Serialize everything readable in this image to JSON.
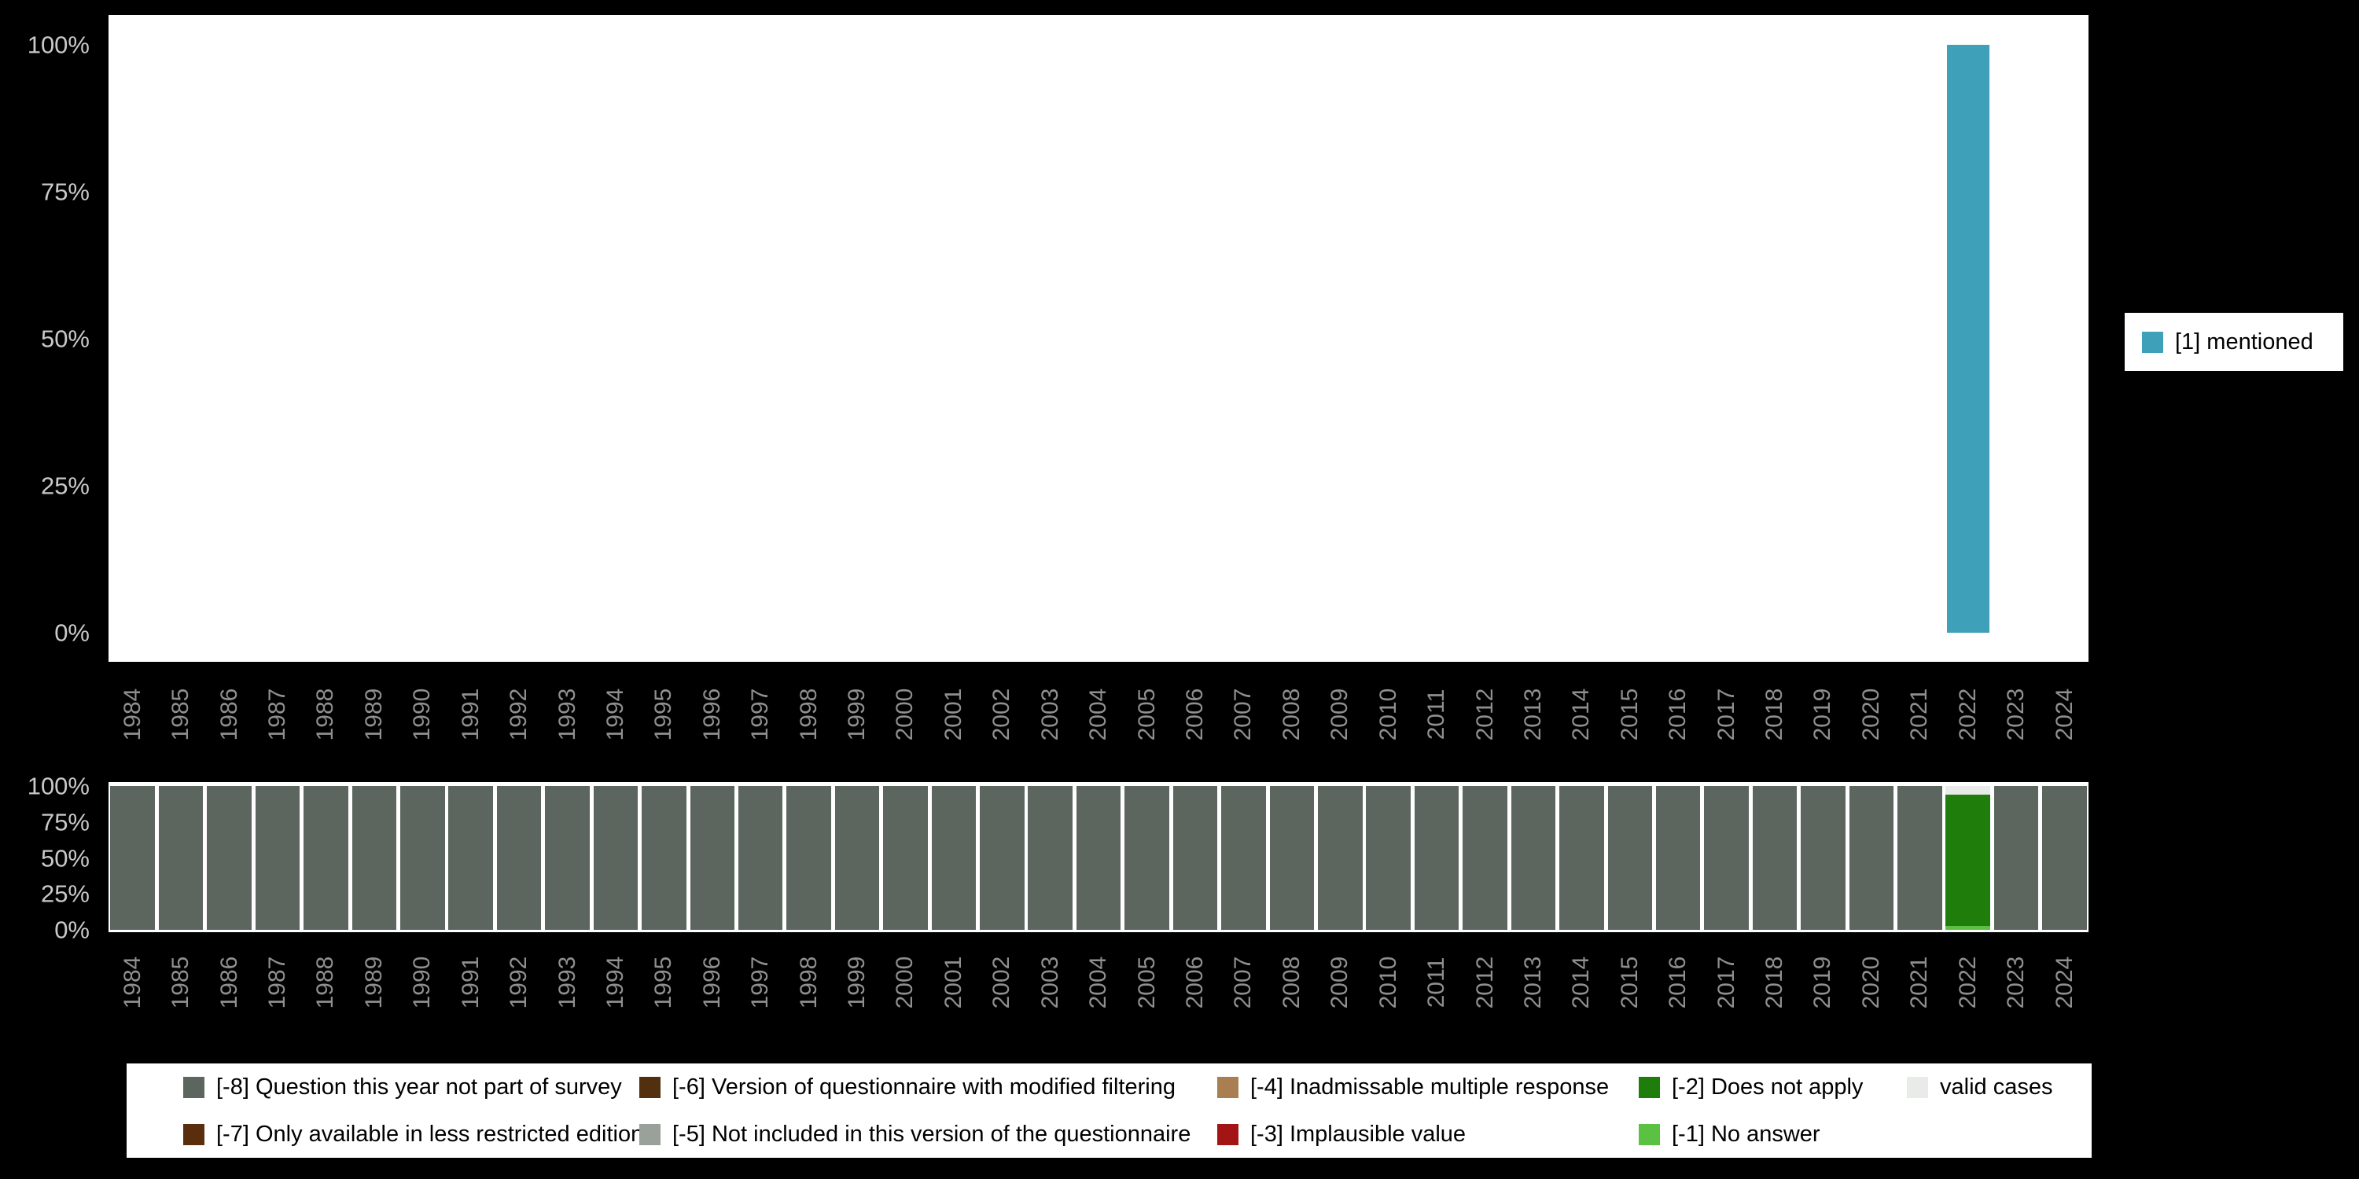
{
  "page": {
    "background": "#000000",
    "panel_background": "#ffffff",
    "ytick_color": "#c9c9c9",
    "xtick_color": "#8f8f8f"
  },
  "legend_right": {
    "label": "[1] mentioned",
    "color": "#3ea1b9"
  },
  "chart_data": [
    {
      "id": "frequencies",
      "type": "bar",
      "title": "",
      "xlabel": "",
      "ylabel": "",
      "ylim": [
        0,
        100
      ],
      "grid": false,
      "legend_position": "right",
      "ytick_labels": [
        "100%",
        "75%",
        "50%",
        "25%",
        "0%"
      ],
      "ytick_values": [
        100,
        75,
        50,
        25,
        0
      ],
      "categories": [
        "1984",
        "1985",
        "1986",
        "1987",
        "1988",
        "1989",
        "1990",
        "1991",
        "1992",
        "1993",
        "1994",
        "1995",
        "1996",
        "1997",
        "1998",
        "1999",
        "2000",
        "2001",
        "2002",
        "2003",
        "2004",
        "2005",
        "2006",
        "2007",
        "2008",
        "2009",
        "2010",
        "2011",
        "2012",
        "2013",
        "2014",
        "2015",
        "2016",
        "2017",
        "2018",
        "2019",
        "2020",
        "2021",
        "2022",
        "2023",
        "2024"
      ],
      "series": [
        {
          "name": "[1] mentioned",
          "color": "#3ea1b9",
          "values": {
            "2022": 100
          }
        }
      ]
    },
    {
      "id": "missing-values",
      "type": "stacked-bar",
      "title": "",
      "xlabel": "",
      "ylabel": "",
      "ylim": [
        0,
        100
      ],
      "grid": false,
      "legend_position": "bottom",
      "ytick_labels": [
        "100%",
        "75%",
        "50%",
        "25%",
        "0%"
      ],
      "ytick_values": [
        100,
        75,
        50,
        25,
        0
      ],
      "categories": [
        "1984",
        "1985",
        "1986",
        "1987",
        "1988",
        "1989",
        "1990",
        "1991",
        "1992",
        "1993",
        "1994",
        "1995",
        "1996",
        "1997",
        "1998",
        "1999",
        "2000",
        "2001",
        "2002",
        "2003",
        "2004",
        "2005",
        "2006",
        "2007",
        "2008",
        "2009",
        "2010",
        "2011",
        "2012",
        "2013",
        "2014",
        "2015",
        "2016",
        "2017",
        "2018",
        "2019",
        "2020",
        "2021",
        "2022",
        "2023",
        "2024"
      ],
      "palette": {
        "-8": "#5d665e",
        "-7": "#5a2e0d",
        "-6": "#52300f",
        "-5": "#9aa09a",
        "-4": "#a97f52",
        "-3": "#a31515",
        "-2": "#1e7d0b",
        "-1": "#5ac142",
        "valid": "#e9ebe9"
      },
      "stacks": {
        "default": [
          {
            "key": "-8",
            "value": 100
          }
        ],
        "2022": [
          {
            "key": "-1",
            "value": 3
          },
          {
            "key": "-2",
            "value": 91
          },
          {
            "key": "valid",
            "value": 6
          }
        ]
      },
      "legend_items": [
        {
          "key": "-8",
          "label": "[-8] Question this year not part of survey"
        },
        {
          "key": "-7",
          "label": "[-7] Only available in less restricted edition"
        },
        {
          "key": "-6",
          "label": "[-6] Version of questionnaire with modified filtering"
        },
        {
          "key": "-5",
          "label": "[-5] Not included in this version of the questionnaire"
        },
        {
          "key": "-4",
          "label": "[-4] Inadmissable multiple response"
        },
        {
          "key": "-3",
          "label": "[-3] Implausible value"
        },
        {
          "key": "-2",
          "label": "[-2] Does not apply"
        },
        {
          "key": "-1",
          "label": "[-1] No answer"
        },
        {
          "key": "valid",
          "label": "valid cases"
        }
      ]
    }
  ]
}
